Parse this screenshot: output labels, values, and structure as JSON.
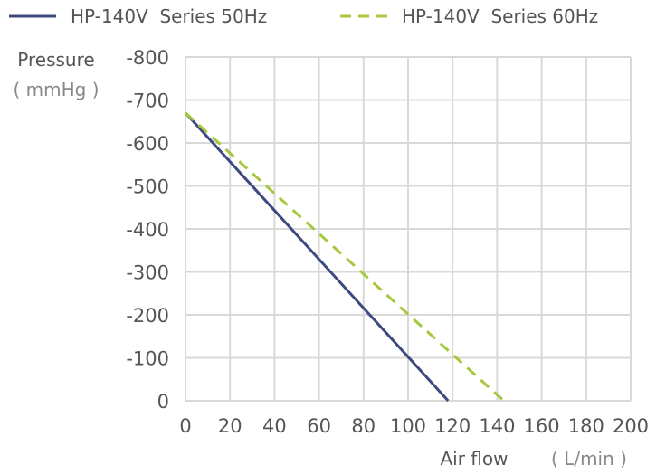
{
  "chart_data": {
    "type": "line",
    "xlabel": "Air flow",
    "xunit": "( L/min )",
    "ylabel": "Pressure",
    "yunit": "( mmHg )",
    "xlim": [
      0,
      200
    ],
    "ylim": [
      0,
      -800
    ],
    "xticks": [
      "0",
      "20",
      "40",
      "60",
      "80",
      "100",
      "120",
      "140",
      "160",
      "180",
      "200"
    ],
    "yticks": [
      "0",
      "-100",
      "-200",
      "-300",
      "-400",
      "-500",
      "-600",
      "-700",
      "-800"
    ],
    "grid": true,
    "legend_position": "top",
    "series": [
      {
        "name": "HP-140V  Series 50Hz",
        "color": "#3d4a80",
        "style": "solid",
        "points": [
          [
            0,
            -670
          ],
          [
            118,
            0
          ]
        ]
      },
      {
        "name": "HP-140V  Series 60Hz",
        "color": "#a6c83c",
        "style": "dashed",
        "points": [
          [
            0,
            -670
          ],
          [
            143,
            0
          ]
        ]
      }
    ]
  }
}
